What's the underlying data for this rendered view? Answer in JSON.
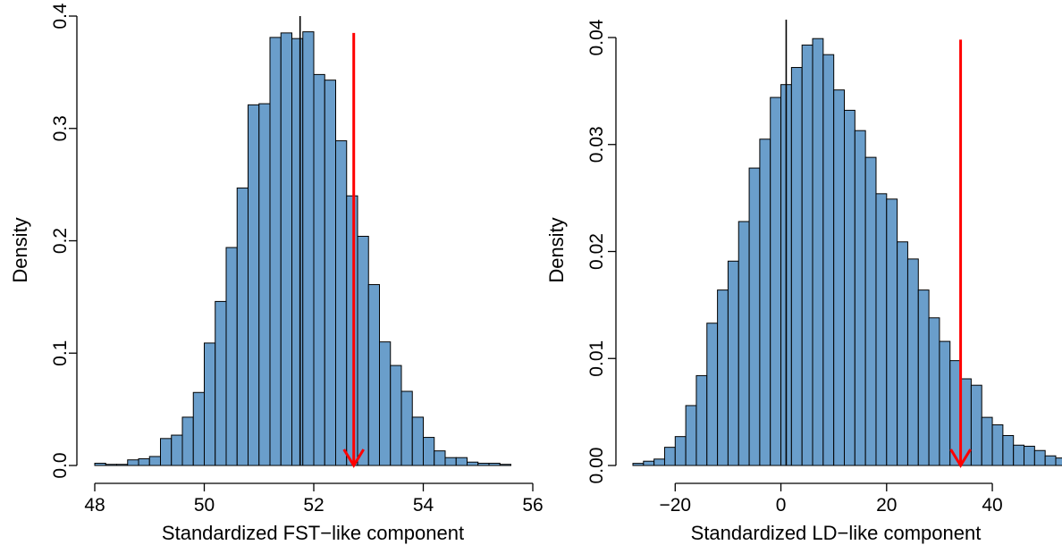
{
  "colors": {
    "bar_fill": "#6a9ecb",
    "bar_stroke": "#000000",
    "arrow": "#ff0000",
    "mean_line": "#000000"
  },
  "chart_data": [
    {
      "type": "histogram",
      "xlabel": "Standardized FST−like component",
      "ylabel": "Density",
      "xlim": [
        48,
        56
      ],
      "ylim": [
        0,
        0.4
      ],
      "xticks": [
        48,
        50,
        52,
        54,
        56
      ],
      "xtick_labels": [
        "48",
        "50",
        "52",
        "54",
        "56"
      ],
      "yticks": [
        0,
        0.1,
        0.2,
        0.3,
        0.4
      ],
      "ytick_labels": [
        "0.0",
        "0.1",
        "0.2",
        "0.3",
        "0.4"
      ],
      "bin_start": 48.0,
      "bin_width": 0.2,
      "densities": [
        0.002,
        0.001,
        0.001,
        0.005,
        0.006,
        0.008,
        0.024,
        0.027,
        0.043,
        0.065,
        0.109,
        0.146,
        0.194,
        0.247,
        0.321,
        0.322,
        0.381,
        0.385,
        0.38,
        0.386,
        0.348,
        0.343,
        0.289,
        0.24,
        0.204,
        0.161,
        0.11,
        0.089,
        0.066,
        0.043,
        0.025,
        0.013,
        0.007,
        0.007,
        0.003,
        0.002,
        0.002,
        0.001
      ],
      "mean_line_x": 51.75,
      "observed_arrow": {
        "x": 52.73,
        "y_top": 0.385,
        "y_bottom": 0.0
      }
    },
    {
      "type": "histogram",
      "xlabel": "Standardized LD−like component",
      "ylabel": "Density",
      "xlim": [
        -28,
        52
      ],
      "ylim": [
        0,
        0.04
      ],
      "xticks": [
        -20,
        0,
        20,
        40
      ],
      "xtick_labels": [
        "−20",
        "0",
        "20",
        "40"
      ],
      "yticks": [
        0,
        0.01,
        0.02,
        0.03,
        0.04
      ],
      "ytick_labels": [
        "0.00",
        "0.01",
        "0.02",
        "0.03",
        "0.04"
      ],
      "bin_start": -28,
      "bin_width": 2,
      "densities": [
        0.0002,
        0.0004,
        0.0006,
        0.0017,
        0.0027,
        0.0056,
        0.0084,
        0.0133,
        0.0164,
        0.0191,
        0.0228,
        0.0278,
        0.0305,
        0.0344,
        0.0356,
        0.0372,
        0.0393,
        0.0399,
        0.0384,
        0.0351,
        0.0332,
        0.0313,
        0.0288,
        0.0254,
        0.0249,
        0.0209,
        0.0193,
        0.0164,
        0.0138,
        0.0116,
        0.0098,
        0.0081,
        0.0075,
        0.0045,
        0.0038,
        0.0028,
        0.0019,
        0.0018,
        0.0014,
        0.0009,
        0.0007,
        0.0004,
        0.0004,
        0.0002,
        0.0001,
        0.0002,
        0.0002,
        0.0001,
        0.0001,
        0.0001
      ],
      "mean_line_x": 1,
      "observed_arrow": {
        "x": 34,
        "y_top": 0.0398,
        "y_bottom": 0.0
      }
    }
  ]
}
